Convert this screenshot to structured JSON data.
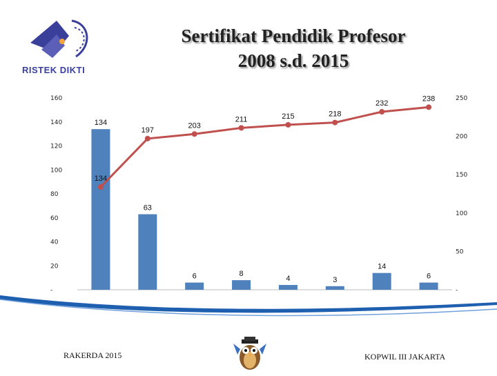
{
  "header": {
    "logo_text": "RISTEK DIKTI",
    "title_line1": "Sertifikat Pendidik Profesor",
    "title_line2": "2008 s.d. 2015"
  },
  "footer": {
    "left": "RAKERDA 2015",
    "right": "KOPWIL III JAKARTA"
  },
  "colors": {
    "bar": "#4f81bd",
    "line": "#c0504d",
    "swoosh": "#1f5fb0"
  },
  "chart_data": {
    "type": "bar",
    "left_axis_ticks": [
      "160",
      "140",
      "120",
      "100",
      "80",
      "60",
      "40",
      "20",
      "-"
    ],
    "right_axis_ticks": [
      "250",
      "200",
      "150",
      "100",
      "50",
      "-"
    ],
    "series": [
      {
        "type": "bar",
        "axis": "left",
        "values": [
          134,
          63,
          6,
          8,
          4,
          3,
          14,
          6
        ],
        "labels": [
          "134",
          "63",
          "6",
          "8",
          "4",
          "3",
          "14",
          "6"
        ]
      },
      {
        "type": "line",
        "axis": "right",
        "values": [
          134,
          197,
          203,
          211,
          215,
          218,
          232,
          238
        ],
        "labels": [
          "134",
          "197",
          "203",
          "211",
          "215",
          "218",
          "232",
          "238"
        ]
      }
    ]
  }
}
